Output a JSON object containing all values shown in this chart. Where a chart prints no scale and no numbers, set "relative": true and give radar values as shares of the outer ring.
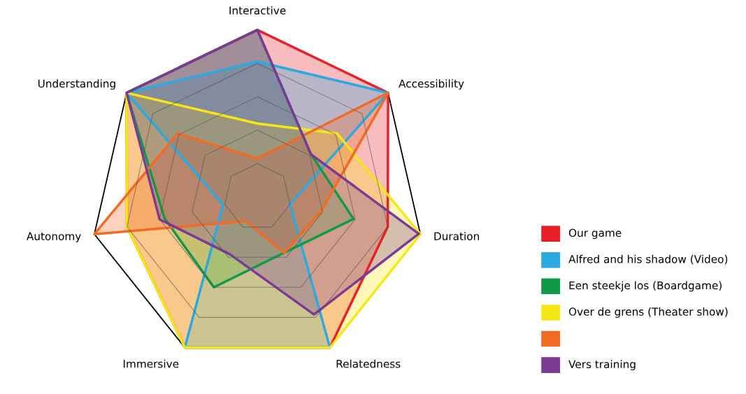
{
  "chart_data": {
    "type": "radar",
    "relative": true,
    "grid": true,
    "legend": "bottom right",
    "categories": [
      "Interactive",
      "Accessibility",
      "Duration",
      "Relatedness",
      "Immersive",
      "Autonomy",
      "Understanding"
    ],
    "series": [
      {
        "name": "Our game",
        "color": "#e8202a",
        "values": [
          1,
          1,
          0.8,
          1,
          1,
          0.8,
          1
        ]
      },
      {
        "name": "Alfred and his shadow (Video)",
        "color": "#2aaae0",
        "values": [
          0.81,
          1,
          0.2,
          1,
          1,
          0.21,
          1
        ]
      },
      {
        "name": "Een steekje los (Boardgame)",
        "color": "#109a48",
        "values": [
          1,
          0.41,
          0.59,
          0.37,
          0.6,
          0.57,
          1
        ]
      },
      {
        "name": "Over de grens (Theater show)",
        "color": "#f7e712",
        "values": [
          0.44,
          0.61,
          1,
          1,
          1,
          0.8,
          1
        ]
      },
      {
        "color": "#f26a24",
        "values": [
          0.23,
          1,
          0.39,
          0.37,
          0.16,
          1,
          0.61
        ]
      },
      {
        "name": "Vers training",
        "color": "#7b3a96",
        "values": [
          1,
          0.41,
          0.99,
          0.78,
          0.38,
          0.6,
          1
        ]
      }
    ]
  }
}
